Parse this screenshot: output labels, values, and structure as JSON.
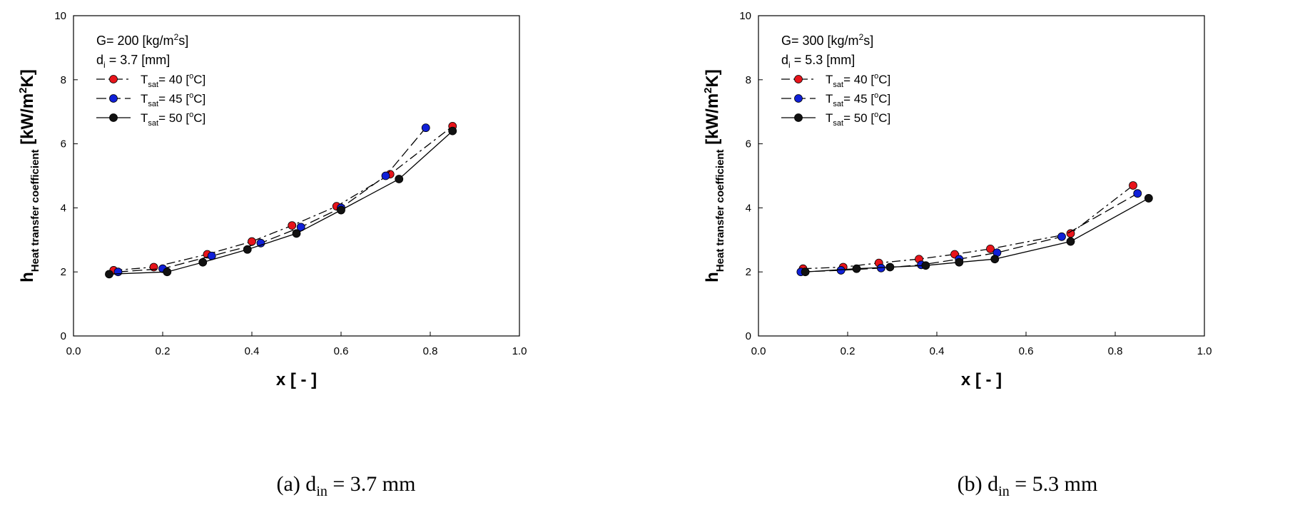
{
  "captions": [
    {
      "prefix": "(a) d",
      "sub": "in",
      "suffix": " = 3.7 mm"
    },
    {
      "prefix": "(b) d",
      "sub": "in",
      "suffix": " = 5.3 mm"
    }
  ],
  "chart_data": [
    {
      "type": "line",
      "xlabel": "x [ - ]",
      "ylabel": {
        "main": "h",
        "sub": "Heat transfer coefficient",
        "unit": "[kW/m",
        "unit_sup": "2",
        "unit_end": "K]"
      },
      "xlim": [
        0.0,
        1.0
      ],
      "ylim": [
        0,
        10
      ],
      "xticks": [
        "0.0",
        "0.2",
        "0.4",
        "0.6",
        "0.8",
        "1.0"
      ],
      "yticks": [
        "0",
        "2",
        "4",
        "6",
        "8",
        "10"
      ],
      "grid": false,
      "legend_position": "top-left",
      "annotations": [
        {
          "pre": "G= 200 [kg/m",
          "sup": "2",
          "post": "s]"
        },
        {
          "pre": "d",
          "sub": "i",
          "post": "= 3.7 [mm]"
        }
      ],
      "series": [
        {
          "name": "T",
          "name_sub": "sat",
          "name_rest": "= 40 [",
          "name_sup": "o",
          "name_end": "C]",
          "color": "#e8141b",
          "dash": "dashdot",
          "x": [
            0.09,
            0.18,
            0.3,
            0.4,
            0.49,
            0.59,
            0.71,
            0.85
          ],
          "y": [
            2.05,
            2.15,
            2.55,
            2.95,
            3.45,
            4.05,
            5.05,
            6.55
          ]
        },
        {
          "name": "T",
          "name_sub": "sat",
          "name_rest": "= 45 [",
          "name_sup": "o",
          "name_end": "C]",
          "color": "#1020d8",
          "dash": "dashed",
          "x": [
            0.1,
            0.2,
            0.31,
            0.42,
            0.51,
            0.6,
            0.7,
            0.79
          ],
          "y": [
            2.0,
            2.1,
            2.5,
            2.9,
            3.4,
            4.0,
            5.0,
            6.5
          ]
        },
        {
          "name": "T",
          "name_sub": "sat",
          "name_rest": "= 50 [",
          "name_sup": "o",
          "name_end": "C]",
          "color": "#111111",
          "dash": "solid",
          "x": [
            0.08,
            0.21,
            0.29,
            0.39,
            0.5,
            0.6,
            0.73,
            0.85
          ],
          "y": [
            1.93,
            2.0,
            2.3,
            2.7,
            3.2,
            3.93,
            4.9,
            6.4
          ]
        }
      ]
    },
    {
      "type": "line",
      "xlabel": "x [ - ]",
      "ylabel": {
        "main": "h",
        "sub": "Heat transfer coefficient",
        "unit": "[kW/m",
        "unit_sup": "2",
        "unit_end": "K]"
      },
      "xlim": [
        0.0,
        1.0
      ],
      "ylim": [
        0,
        10
      ],
      "xticks": [
        "0.0",
        "0.2",
        "0.4",
        "0.6",
        "0.8",
        "1.0"
      ],
      "yticks": [
        "0",
        "2",
        "4",
        "6",
        "8",
        "10"
      ],
      "grid": false,
      "legend_position": "top-left",
      "annotations": [
        {
          "pre": "G= 300 [kg/m",
          "sup": "2",
          "post": "s]"
        },
        {
          "pre": "d",
          "sub": "i",
          "post": "= 5.3 [mm]"
        }
      ],
      "series": [
        {
          "name": "T",
          "name_sub": "sat",
          "name_rest": "= 40 [",
          "name_sup": "o",
          "name_end": "C]",
          "color": "#e8141b",
          "dash": "dashdot",
          "x": [
            0.1,
            0.19,
            0.27,
            0.36,
            0.44,
            0.52,
            0.7,
            0.84
          ],
          "y": [
            2.1,
            2.15,
            2.28,
            2.4,
            2.55,
            2.72,
            3.2,
            4.7
          ]
        },
        {
          "name": "T",
          "name_sub": "sat",
          "name_rest": "= 45 [",
          "name_sup": "o",
          "name_end": "C]",
          "color": "#1020d8",
          "dash": "dashed",
          "x": [
            0.095,
            0.185,
            0.275,
            0.365,
            0.45,
            0.535,
            0.68,
            0.85
          ],
          "y": [
            2.0,
            2.05,
            2.12,
            2.22,
            2.4,
            2.6,
            3.1,
            4.45
          ]
        },
        {
          "name": "T",
          "name_sub": "sat",
          "name_rest": "= 50 [",
          "name_sup": "o",
          "name_end": "C]",
          "color": "#111111",
          "dash": "solid",
          "x": [
            0.105,
            0.22,
            0.295,
            0.375,
            0.45,
            0.53,
            0.7,
            0.875
          ],
          "y": [
            2.0,
            2.1,
            2.15,
            2.2,
            2.3,
            2.4,
            2.95,
            4.3
          ]
        }
      ]
    }
  ]
}
